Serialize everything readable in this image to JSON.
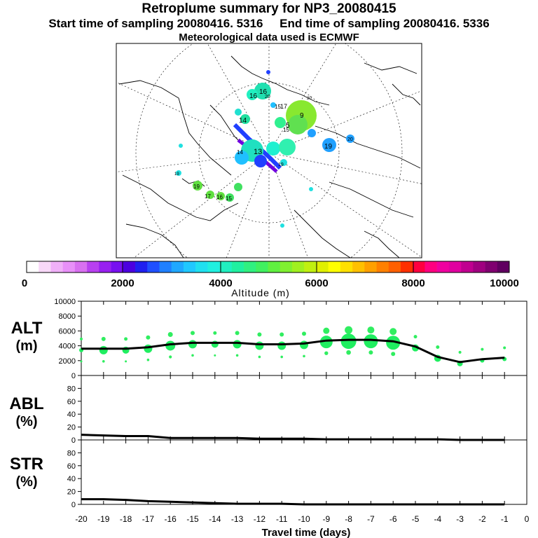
{
  "header": {
    "title": "Retroplume summary for NP3_20080415",
    "start": "Start time of sampling 20080416.  5316",
    "end": "End time of sampling 20080416.  5336",
    "met": "Meteorological data used is ECMWF"
  },
  "map": {
    "description": "polar stereographic map with retroplume trajectory",
    "labels": [
      "16",
      "16",
      "20",
      "15",
      "17",
      "14",
      "9",
      "5",
      "19",
      "20",
      "14",
      "15",
      "13",
      "19",
      "17",
      "16",
      "15",
      "19",
      "19",
      "20"
    ]
  },
  "colorbar": {
    "ticks": [
      "0",
      "2000",
      "4000",
      "6000",
      "8000",
      "10000"
    ],
    "label": "Altitude (m)"
  },
  "panels": {
    "alt": {
      "label": "ALT",
      "unit": "(m)"
    },
    "abl": {
      "label": "ABL",
      "unit": "(%)"
    },
    "str": {
      "label": "STR",
      "unit": "(%)"
    }
  },
  "xaxis": {
    "label": "Travel time (days)"
  },
  "chart_data": [
    {
      "type": "line",
      "title": "ALT",
      "ylabel": "ALT (m)",
      "xlabel": "Travel time (days)",
      "x": [
        -20,
        -19,
        -18,
        -17,
        -16,
        -15,
        -14,
        -13,
        -12,
        -11,
        -10,
        -9,
        -8,
        -7,
        -6,
        -5,
        -4,
        -3,
        -2,
        -1
      ],
      "values": [
        3600,
        3600,
        3600,
        3800,
        4200,
        4400,
        4400,
        4400,
        4200,
        4200,
        4300,
        4700,
        4800,
        4800,
        4600,
        3900,
        2500,
        1800,
        2200,
        2400
      ],
      "ylim": [
        0,
        10000
      ],
      "yticks": [
        0,
        2000,
        4000,
        6000,
        8000,
        10000
      ],
      "xlim": [
        -20,
        0
      ],
      "xticks": [
        -20,
        -19,
        -18,
        -17,
        -16,
        -15,
        -14,
        -13,
        -12,
        -11,
        -10,
        -9,
        -8,
        -7,
        -6,
        -5,
        -4,
        -3,
        -2,
        -1,
        0
      ]
    },
    {
      "type": "line",
      "title": "ABL",
      "ylabel": "ABL (%)",
      "x": [
        -20,
        -19,
        -18,
        -17,
        -16,
        -15,
        -14,
        -13,
        -12,
        -11,
        -10,
        -9,
        -8,
        -7,
        -6,
        -5,
        -4,
        -3,
        -2,
        -1
      ],
      "values": [
        8,
        7,
        6,
        6,
        3,
        3,
        3,
        3,
        2,
        2,
        2,
        1,
        1,
        1,
        1,
        1,
        1,
        0,
        0,
        0
      ],
      "ylim": [
        0,
        100
      ],
      "yticks": [
        0,
        20,
        40,
        60,
        80
      ]
    },
    {
      "type": "line",
      "title": "STR",
      "ylabel": "STR (%)",
      "x": [
        -20,
        -19,
        -18,
        -17,
        -16,
        -15,
        -14,
        -13,
        -12,
        -11,
        -10,
        -9,
        -8,
        -7,
        -6,
        -5,
        -4,
        -3,
        -2,
        -1
      ],
      "values": [
        8,
        8,
        7,
        5,
        4,
        3,
        2,
        1,
        1,
        1,
        0,
        0,
        0,
        0,
        0,
        0,
        0,
        0,
        0,
        0
      ],
      "ylim": [
        0,
        100
      ],
      "yticks": [
        0,
        20,
        40,
        60,
        80
      ]
    }
  ]
}
